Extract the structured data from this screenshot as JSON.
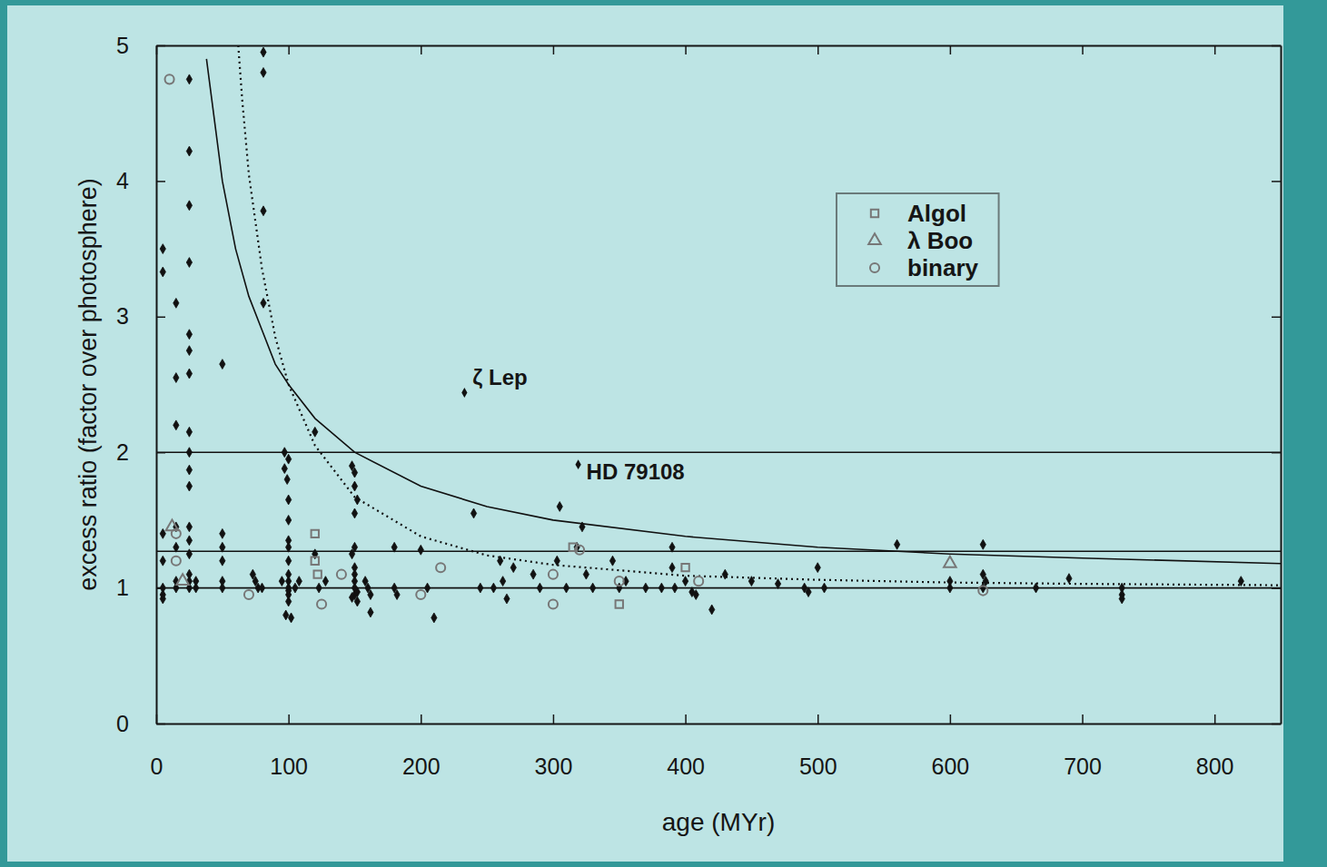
{
  "chart_data": {
    "type": "scatter",
    "x_label": "age (MYr)",
    "y_label": "excess ratio (factor over photosphere)",
    "xlim": [
      0,
      850
    ],
    "ylim": [
      0,
      5
    ],
    "xticks": [
      0,
      100,
      200,
      300,
      400,
      500,
      600,
      700,
      800
    ],
    "yticks": [
      0,
      1,
      2,
      3,
      4,
      5
    ],
    "legend": "upper right",
    "series": [
      {
        "type": "line",
        "color": "#111111",
        "line_style": "solid",
        "x": [
          38,
          40,
          50,
          60,
          70,
          80,
          90,
          100,
          120,
          150,
          200,
          250,
          300,
          400,
          500,
          600,
          700,
          850
        ],
        "values": [
          4.9,
          4.75,
          4.0,
          3.5,
          3.15,
          2.9,
          2.65,
          2.5,
          2.25,
          2.0,
          1.75,
          1.6,
          1.5,
          1.38,
          1.3,
          1.25,
          1.22,
          1.18
        ]
      },
      {
        "type": "line",
        "color": "#111111",
        "line_style": "dotted",
        "x": [
          62,
          65,
          70,
          80,
          90,
          100,
          120,
          150,
          200,
          250,
          300,
          400,
          500,
          600,
          700,
          850
        ],
        "values": [
          5.0,
          4.6,
          4.05,
          3.35,
          2.85,
          2.5,
          2.05,
          1.67,
          1.38,
          1.24,
          1.17,
          1.09,
          1.06,
          1.04,
          1.03,
          1.02
        ]
      },
      {
        "type": "line",
        "color": "#111111",
        "line_style": "solid",
        "x": [
          0,
          850
        ],
        "values": [
          2,
          2
        ]
      },
      {
        "type": "line",
        "color": "#111111",
        "line_style": "solid",
        "x": [
          0,
          850
        ],
        "values": [
          1.27,
          1.27
        ]
      },
      {
        "type": "line",
        "color": "#111111",
        "line_style": "solid",
        "x": [
          0,
          850
        ],
        "values": [
          1,
          1
        ]
      },
      {
        "type": "scatter",
        "color": "#111111",
        "marker": "diamond",
        "x": [
          5,
          5,
          5,
          5,
          5,
          5,
          5,
          15,
          15,
          15,
          15,
          15,
          15,
          15,
          25,
          25,
          25,
          25,
          25,
          25,
          25,
          25,
          25,
          25,
          25,
          25,
          25,
          25,
          25,
          25,
          25,
          30,
          30,
          50,
          50,
          50,
          50,
          50,
          50,
          73,
          75,
          77,
          81,
          81,
          81,
          81,
          80,
          95,
          97,
          97,
          99,
          100,
          100,
          100,
          100,
          100,
          100,
          100,
          100,
          100,
          100,
          100,
          100,
          98,
          102,
          105,
          108,
          120,
          120,
          123,
          128,
          148,
          150,
          150,
          152,
          150,
          150,
          148,
          150,
          150,
          150,
          150,
          152,
          150,
          148,
          152,
          158,
          160,
          162,
          162,
          180,
          180,
          182,
          200,
          205,
          210,
          240,
          245,
          255,
          260,
          262,
          265,
          270,
          285,
          290,
          305,
          303,
          310,
          322,
          318,
          325,
          330,
          345,
          350,
          355,
          370,
          382,
          390,
          390,
          392,
          400,
          405,
          408,
          420,
          430,
          450,
          470,
          490,
          493,
          500,
          505,
          560,
          600,
          600,
          625,
          625,
          625,
          627,
          665,
          690,
          730,
          730,
          730,
          820
        ],
        "values": [
          3.5,
          3.33,
          1.4,
          1.2,
          1.0,
          0.95,
          0.92,
          3.1,
          2.55,
          2.2,
          1.45,
          1.3,
          1.05,
          1.0,
          4.75,
          4.22,
          3.82,
          3.4,
          2.87,
          2.75,
          2.58,
          2.15,
          2.0,
          1.87,
          1.75,
          1.45,
          1.35,
          1.25,
          1.1,
          1.05,
          1.0,
          1.05,
          1.0,
          2.65,
          1.4,
          1.3,
          1.2,
          1.05,
          1.0,
          1.1,
          1.05,
          1.0,
          4.95,
          4.8,
          3.78,
          3.1,
          1.0,
          1.05,
          2.0,
          1.88,
          1.8,
          1.95,
          1.65,
          1.5,
          1.35,
          1.3,
          1.2,
          1.1,
          1.05,
          1.0,
          0.98,
          0.95,
          0.9,
          0.8,
          0.78,
          1.0,
          1.05,
          2.15,
          1.25,
          1.0,
          1.05,
          1.9,
          1.85,
          1.75,
          1.65,
          1.55,
          1.3,
          1.25,
          1.15,
          1.1,
          1.05,
          1.0,
          0.97,
          0.95,
          0.93,
          0.9,
          1.05,
          1.0,
          0.95,
          0.82,
          1.3,
          1.0,
          0.95,
          1.28,
          1.0,
          0.78,
          1.55,
          1.0,
          1.0,
          1.2,
          1.05,
          0.92,
          1.15,
          1.1,
          1.0,
          1.6,
          1.2,
          1.0,
          1.45,
          1.3,
          1.1,
          1.0,
          1.2,
          1.0,
          1.05,
          1.0,
          1.0,
          1.3,
          1.15,
          1.0,
          1.05,
          0.97,
          0.95,
          0.84,
          1.1,
          1.05,
          1.03,
          1.0,
          0.97,
          1.15,
          1.0,
          1.32,
          1.0,
          1.05,
          1.32,
          1.1,
          1.0,
          1.05,
          1.0,
          1.07,
          1.0,
          0.95,
          0.92,
          1.05
        ]
      },
      {
        "type": "scatter",
        "name": "Algol",
        "color": "#777777",
        "marker": "open-square",
        "x": [
          120,
          120,
          122,
          315,
          350,
          400
        ],
        "values": [
          1.4,
          1.2,
          1.1,
          1.3,
          0.88,
          1.15
        ]
      },
      {
        "type": "scatter",
        "name": "λ Boo",
        "color": "#777777",
        "marker": "open-triangle",
        "x": [
          12,
          20,
          600
        ],
        "values": [
          1.45,
          1.05,
          1.18
        ]
      },
      {
        "type": "scatter",
        "name": "binary",
        "color": "#777777",
        "marker": "open-circle",
        "x": [
          10,
          15,
          15,
          70,
          125,
          140,
          200,
          215,
          300,
          300,
          320,
          350,
          410,
          625
        ],
        "values": [
          4.75,
          1.4,
          1.2,
          0.95,
          0.88,
          1.1,
          0.95,
          1.15,
          0.88,
          1.1,
          1.28,
          1.05,
          1.05,
          0.98
        ]
      }
    ],
    "annotations": [
      {
        "text": "ζ Lep",
        "x": 233,
        "y": 2.44
      },
      {
        "text": "HD 79108",
        "x": 319,
        "y": 1.91
      }
    ]
  }
}
